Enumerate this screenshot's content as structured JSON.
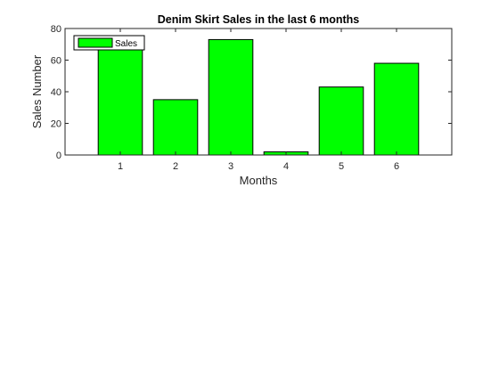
{
  "chart_data": {
    "type": "bar",
    "title": "Denim Skirt Sales  in the last 6 months",
    "xlabel": "Months",
    "ylabel": "Sales Number",
    "categories": [
      "1",
      "2",
      "3",
      "4",
      "5",
      "6"
    ],
    "series": [
      {
        "name": "Sales",
        "values": [
          69,
          35,
          73,
          2,
          43,
          58
        ]
      }
    ],
    "xlim": [
      0,
      7
    ],
    "ylim": [
      0,
      80
    ],
    "yticks": [
      0,
      20,
      40,
      60,
      80
    ],
    "ytick_labels": [
      "0",
      "20",
      "40",
      "60",
      "80"
    ],
    "grid": false,
    "legend": "top-left",
    "colors": {
      "bar_fill": "#00ff00",
      "bar_edge": "#000000",
      "axis": "#262626"
    }
  }
}
